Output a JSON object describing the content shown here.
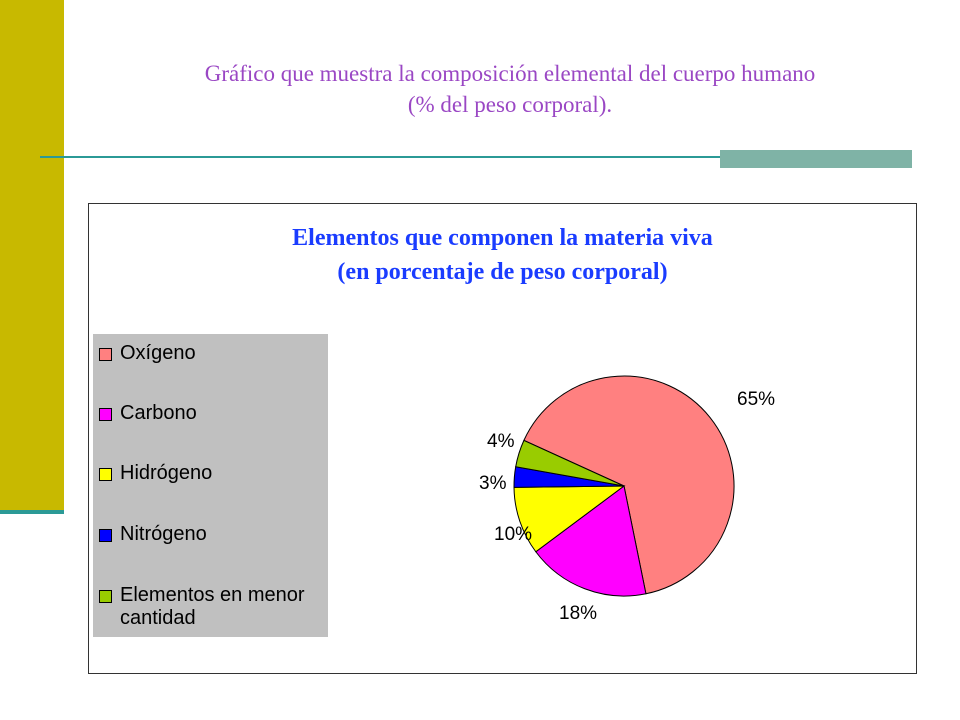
{
  "slide": {
    "title_line1": "Gráfico que muestra la composición elemental del cuerpo humano",
    "title_line2": "(% del peso corporal)."
  },
  "chart_data": {
    "type": "pie",
    "title_line1": "Elementos que componen la materia viva",
    "title_line2": "(en porcentaje de peso corporal)",
    "legend_position": "left",
    "slices": [
      {
        "name": "Oxígeno",
        "value": 65,
        "label": "65%",
        "color": "#ff8080"
      },
      {
        "name": "Carbono",
        "value": 18,
        "label": "18%",
        "color": "#ff00ff"
      },
      {
        "name": "Hidrógeno",
        "value": 10,
        "label": "10%",
        "color": "#ffff00"
      },
      {
        "name": "Nitrógeno",
        "value": 3,
        "label": "3%",
        "color": "#0000ff"
      },
      {
        "name": "Elementos en menor cantidad",
        "value": 4,
        "label": "4%",
        "color": "#99cc00"
      }
    ]
  }
}
